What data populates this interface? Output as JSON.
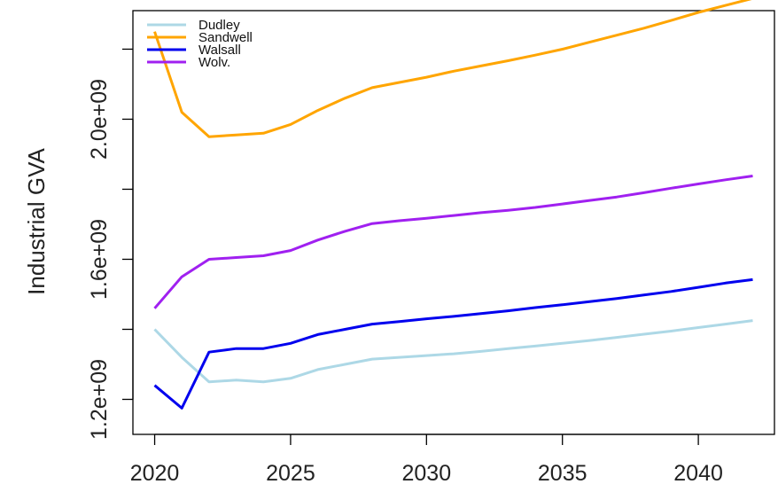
{
  "chart_data": {
    "type": "line",
    "title": "",
    "xlabel": "",
    "ylabel": "Industrial GVA",
    "xlim": [
      2019.2,
      2042.8
    ],
    "ylim": [
      1100000000.0,
      2310000000.0
    ],
    "x_ticks": [
      2020,
      2025,
      2030,
      2035,
      2040
    ],
    "x_tick_labels": [
      "2020",
      "2025",
      "2030",
      "2035",
      "2040"
    ],
    "y_ticks": [
      1200000000.0,
      1600000000.0,
      2000000000.0
    ],
    "y_tick_labels": [
      "1.2e+09",
      "1.6e+09",
      "2.0e+09"
    ],
    "grid": false,
    "legend_position": "top-left",
    "x": [
      2020,
      2021,
      2022,
      2023,
      2024,
      2025,
      2026,
      2027,
      2028,
      2029,
      2030,
      2031,
      2032,
      2033,
      2034,
      2035,
      2036,
      2037,
      2038,
      2039,
      2040,
      2041,
      2042
    ],
    "series": [
      {
        "name": "Dudley",
        "color": "#add8e6",
        "values": [
          1400000000.0,
          1320000000.0,
          1250000000.0,
          1255000000.0,
          1250000000.0,
          1260000000.0,
          1285000000.0,
          1300000000.0,
          1315000000.0,
          1320000000.0,
          1325000000.0,
          1330000000.0,
          1337000000.0,
          1345000000.0,
          1352000000.0,
          1360000000.0,
          1368000000.0,
          1377000000.0,
          1386000000.0,
          1395000000.0,
          1405000000.0,
          1415000000.0,
          1425000000.0
        ]
      },
      {
        "name": "Sandwell",
        "color": "#ffa500",
        "values": [
          2250000000.0,
          2020000000.0,
          1950000000.0,
          1955000000.0,
          1960000000.0,
          1985000000.0,
          2025000000.0,
          2060000000.0,
          2090000000.0,
          2105000000.0,
          2120000000.0,
          2137000000.0,
          2152000000.0,
          2167000000.0,
          2183000000.0,
          2200000000.0,
          2220000000.0,
          2240000000.0,
          2260000000.0,
          2282000000.0,
          2305000000.0,
          2325000000.0,
          2345000000.0
        ]
      },
      {
        "name": "Walsall",
        "color": "#0000ee",
        "values": [
          1240000000.0,
          1175000000.0,
          1335000000.0,
          1345000000.0,
          1345000000.0,
          1360000000.0,
          1385000000.0,
          1400000000.0,
          1415000000.0,
          1422000000.0,
          1430000000.0,
          1437000000.0,
          1445000000.0,
          1453000000.0,
          1462000000.0,
          1470000000.0,
          1479000000.0,
          1488000000.0,
          1498000000.0,
          1508000000.0,
          1520000000.0,
          1532000000.0,
          1542000000.0
        ]
      },
      {
        "name": "Wolv.",
        "color": "#a020f0",
        "values": [
          1460000000.0,
          1550000000.0,
          1600000000.0,
          1605000000.0,
          1610000000.0,
          1625000000.0,
          1655000000.0,
          1680000000.0,
          1702000000.0,
          1710000000.0,
          1717000000.0,
          1725000000.0,
          1733000000.0,
          1740000000.0,
          1748000000.0,
          1758000000.0,
          1768000000.0,
          1778000000.0,
          1790000000.0,
          1803000000.0,
          1815000000.0,
          1827000000.0,
          1838000000.0
        ]
      }
    ]
  }
}
